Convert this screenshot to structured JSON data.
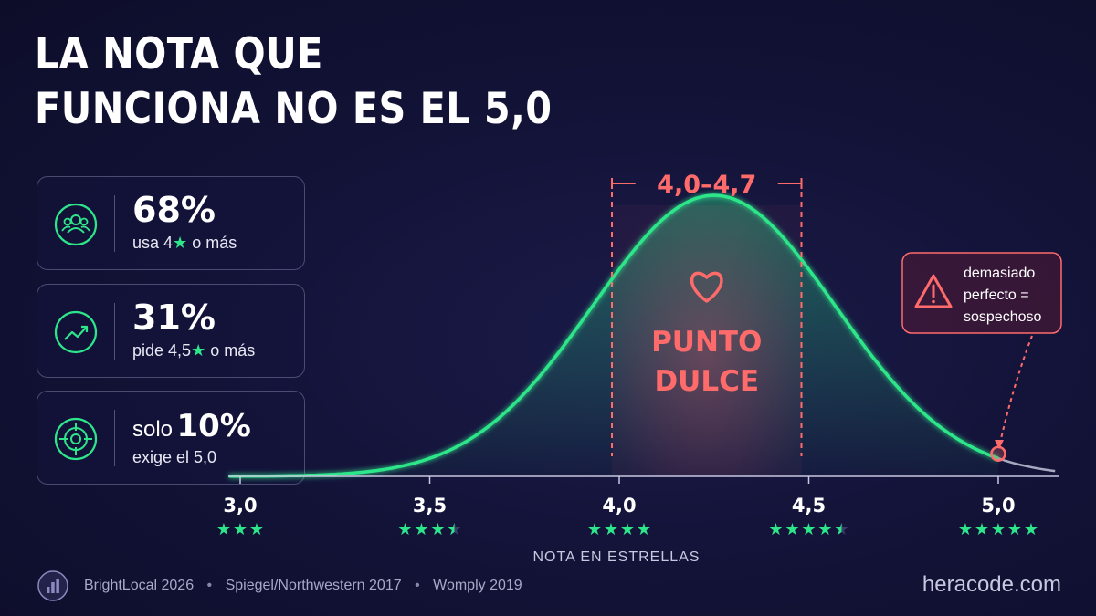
{
  "title": {
    "line1": "LA NOTA QUE",
    "line2": "FUNCIONA NO ES EL 5,0"
  },
  "stats": [
    {
      "icon": "users-icon",
      "value": "68%",
      "label_pre": "usa 4",
      "label_post": "o más"
    },
    {
      "icon": "trend-up-icon",
      "value": "31%",
      "label_pre": "pide 4,5",
      "label_post": "o más"
    },
    {
      "icon": "target-icon",
      "prefix": "solo",
      "value": "10%",
      "label": "exige el 5,0"
    }
  ],
  "chart_data": {
    "type": "area",
    "xlabel": "NOTA EN ESTRELLAS",
    "ticks": [
      {
        "value": 3.0,
        "label": "3,0",
        "stars": 3
      },
      {
        "value": 3.5,
        "label": "3,5",
        "stars": 3.5
      },
      {
        "value": 4.0,
        "label": "4,0",
        "stars": 4
      },
      {
        "value": 4.5,
        "label": "4,5",
        "stars": 4.5
      },
      {
        "value": 5.0,
        "label": "5,0",
        "stars": 5
      }
    ],
    "xlim": [
      2.97,
      5.15
    ],
    "curve": {
      "shape": "bell",
      "peak_x": 4.25,
      "spread": 0.32
    },
    "sweet_spot": {
      "range": [
        4.0,
        4.7
      ],
      "range_label": "4,0–4,7",
      "label_line1": "PUNTO",
      "label_line2": "DULCE",
      "icon": "heart-icon"
    },
    "warning": {
      "x": 5.0,
      "icon": "warning-icon",
      "lines": [
        "demasiado",
        "perfecto =",
        "sospechoso"
      ]
    },
    "colors": {
      "curve": "#2ee68a",
      "accent": "#ff6b6b",
      "axis": "#c8c8e0",
      "star": "#2ee68a"
    }
  },
  "footer": {
    "icon": "bar-chart-icon",
    "sources": [
      "BrightLocal 2026",
      "Spiegel/Northwestern 2017",
      "Womply 2019"
    ],
    "separator": "•",
    "brand": "heracode.com"
  }
}
